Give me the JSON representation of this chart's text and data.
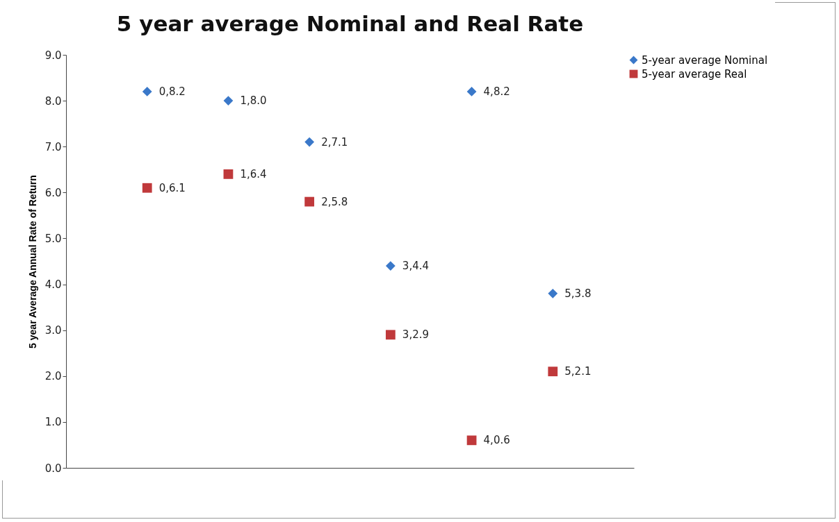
{
  "chart_data": {
    "type": "scatter",
    "title": "5 year average Nominal and Real Rate",
    "ylabel": "5 year Average Annual Rate of Return",
    "categories": [
      null,
      null,
      null,
      null,
      null,
      null
    ],
    "series": [
      {
        "name": "5-year average Nominal",
        "color": "#3a78c9",
        "marker": "diamond",
        "values": [
          8.2,
          8.0,
          7.1,
          4.4,
          8.2,
          3.8
        ],
        "value_labels": [
          "0,8.2",
          "1,8.0",
          "2,7.1",
          "3,4.4",
          "4,8.2",
          "5,3.8"
        ]
      },
      {
        "name": "5-year average Real",
        "color": "#c0393b",
        "marker": "square",
        "values": [
          6.1,
          6.4,
          5.8,
          2.9,
          0.6,
          2.1
        ],
        "value_labels": [
          "0,6.1",
          "1,6.4",
          "2,5.8",
          "3,2.9",
          "4,0.6",
          "5,2.1"
        ]
      }
    ],
    "ylim": [
      0,
      9
    ],
    "yticks": [
      {
        "value": 0,
        "label": "0.0"
      },
      {
        "value": 1,
        "label": "1.0"
      },
      {
        "value": 2,
        "label": "2.0"
      },
      {
        "value": 3,
        "label": "3.0"
      },
      {
        "value": 4,
        "label": "4.0"
      },
      {
        "value": 5,
        "label": "5.0"
      },
      {
        "value": 6,
        "label": "6.0"
      },
      {
        "value": 7,
        "label": "7.0"
      },
      {
        "value": 8,
        "label": "8.0"
      },
      {
        "value": 9,
        "label": "9.0"
      }
    ],
    "tick_labels": "y",
    "grid": false,
    "legend": "right"
  }
}
